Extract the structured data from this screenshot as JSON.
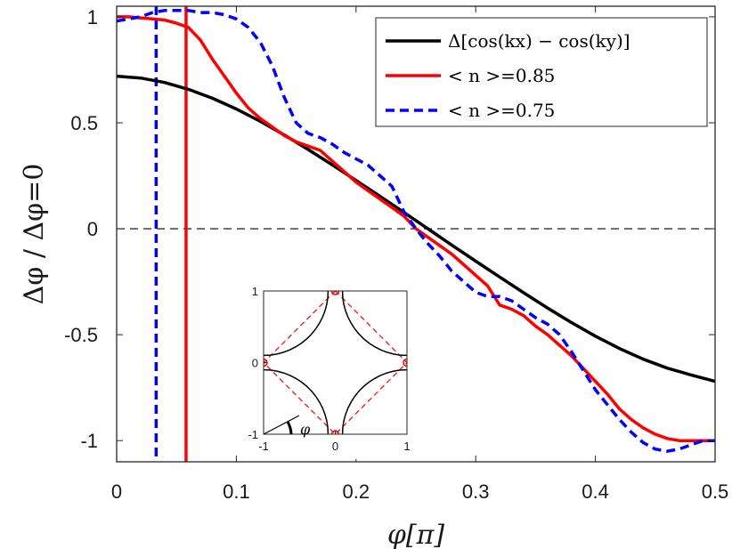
{
  "chart_data": {
    "type": "line",
    "title": "",
    "xlabel": "φ[π]",
    "ylabel": "Δφ / Δφ=0",
    "xlim": [
      0,
      0.5
    ],
    "ylim": [
      -1.1,
      1.05
    ],
    "xticks": [
      "0",
      "0.1",
      "0.2",
      "0.3",
      "0.4",
      "0.5"
    ],
    "yticks": [
      "-1",
      "-0.5",
      "0",
      "0.5",
      "1"
    ],
    "xtick_values": [
      0,
      0.1,
      0.2,
      0.3,
      0.4,
      0.5
    ],
    "ytick_values": [
      -1,
      -0.5,
      0,
      0.5,
      1
    ],
    "legend_position": "top-right",
    "series": [
      {
        "name": "Δ[cos(kx) − cos(ky)]",
        "legend_text": "Δ[cos(kx) − cos(ky)]",
        "color": "#000000",
        "dash": "solid",
        "x": [
          0,
          0.02,
          0.04,
          0.06,
          0.08,
          0.1,
          0.12,
          0.14,
          0.16,
          0.18,
          0.2,
          0.22,
          0.24,
          0.26,
          0.28,
          0.3,
          0.32,
          0.34,
          0.36,
          0.38,
          0.4,
          0.42,
          0.44,
          0.46,
          0.48,
          0.5
        ],
        "values": [
          0.72,
          0.711,
          0.69,
          0.658,
          0.616,
          0.565,
          0.507,
          0.443,
          0.374,
          0.302,
          0.228,
          0.153,
          0.077,
          0.0,
          -0.077,
          -0.153,
          -0.228,
          -0.302,
          -0.374,
          -0.443,
          -0.507,
          -0.565,
          -0.616,
          -0.658,
          -0.69,
          -0.72
        ]
      },
      {
        "name": "<n>=0.85",
        "legend_text": "< n >=0.85",
        "color": "#ff0000",
        "dash": "solid",
        "x": [
          0,
          0.01,
          0.02,
          0.03,
          0.04,
          0.05,
          0.06,
          0.07,
          0.08,
          0.09,
          0.1,
          0.11,
          0.12,
          0.13,
          0.14,
          0.15,
          0.16,
          0.17,
          0.18,
          0.19,
          0.2,
          0.21,
          0.22,
          0.23,
          0.24,
          0.25,
          0.26,
          0.27,
          0.28,
          0.29,
          0.3,
          0.31,
          0.32,
          0.33,
          0.34,
          0.35,
          0.36,
          0.37,
          0.38,
          0.39,
          0.4,
          0.41,
          0.42,
          0.43,
          0.44,
          0.45,
          0.46,
          0.47,
          0.48,
          0.49,
          0.5
        ],
        "values": [
          1.0,
          1.0,
          0.995,
          0.99,
          0.985,
          0.97,
          0.95,
          0.89,
          0.8,
          0.72,
          0.64,
          0.57,
          0.52,
          0.48,
          0.44,
          0.41,
          0.39,
          0.37,
          0.32,
          0.27,
          0.22,
          0.18,
          0.14,
          0.1,
          0.06,
          0.0,
          -0.04,
          -0.08,
          -0.12,
          -0.17,
          -0.22,
          -0.27,
          -0.36,
          -0.38,
          -0.41,
          -0.46,
          -0.5,
          -0.55,
          -0.6,
          -0.66,
          -0.72,
          -0.78,
          -0.85,
          -0.9,
          -0.94,
          -0.97,
          -0.99,
          -1.0,
          -1.0,
          -1.0,
          -1.0
        ]
      },
      {
        "name": "<n>=0.75",
        "legend_text": "< n >=0.75",
        "color": "#0000ff",
        "dash": "dashed",
        "x": [
          0,
          0.01,
          0.02,
          0.03,
          0.04,
          0.05,
          0.06,
          0.07,
          0.08,
          0.09,
          0.1,
          0.11,
          0.12,
          0.13,
          0.14,
          0.15,
          0.16,
          0.17,
          0.18,
          0.19,
          0.2,
          0.21,
          0.22,
          0.23,
          0.24,
          0.25,
          0.26,
          0.27,
          0.28,
          0.29,
          0.3,
          0.31,
          0.32,
          0.33,
          0.34,
          0.35,
          0.36,
          0.37,
          0.38,
          0.39,
          0.4,
          0.41,
          0.42,
          0.43,
          0.44,
          0.45,
          0.46,
          0.47,
          0.48,
          0.49,
          0.5
        ],
        "values": [
          0.98,
          0.99,
          1.0,
          1.02,
          1.03,
          1.03,
          1.03,
          1.02,
          1.02,
          1.01,
          0.99,
          0.95,
          0.88,
          0.77,
          0.62,
          0.5,
          0.45,
          0.43,
          0.4,
          0.36,
          0.33,
          0.3,
          0.25,
          0.2,
          0.08,
          0.0,
          -0.07,
          -0.13,
          -0.2,
          -0.25,
          -0.3,
          -0.32,
          -0.32,
          -0.34,
          -0.38,
          -0.42,
          -0.45,
          -0.5,
          -0.58,
          -0.67,
          -0.76,
          -0.83,
          -0.9,
          -0.96,
          -1.01,
          -1.04,
          -1.05,
          -1.04,
          -1.02,
          -1.0,
          -1.0
        ]
      }
    ],
    "vertical_lines": [
      {
        "x": 0.058,
        "color": "#ff0000",
        "dash": "solid",
        "series": "<n>=0.85"
      },
      {
        "x": 0.033,
        "color": "#0000ff",
        "dash": "dashed",
        "series": "<n>=0.75"
      }
    ],
    "reference_line": {
      "y": 0,
      "color": "#000000",
      "dash": "dashed"
    },
    "inset": {
      "xlim": [
        -1,
        1
      ],
      "ylim": [
        -1,
        1
      ],
      "xticks": [
        "-1",
        "0",
        "1"
      ],
      "yticks": [
        "-1",
        "0",
        "1"
      ],
      "xtick_values": [
        -1,
        0,
        1
      ],
      "ytick_values": [
        -1,
        0,
        1
      ],
      "angle_label": "φ",
      "fermi_surface_color": "#000000",
      "diamond_color": "#ff0000",
      "diamond_vertices": [
        [
          0,
          1
        ],
        [
          1,
          0
        ],
        [
          0,
          -1
        ],
        [
          -1,
          0
        ]
      ]
    }
  }
}
